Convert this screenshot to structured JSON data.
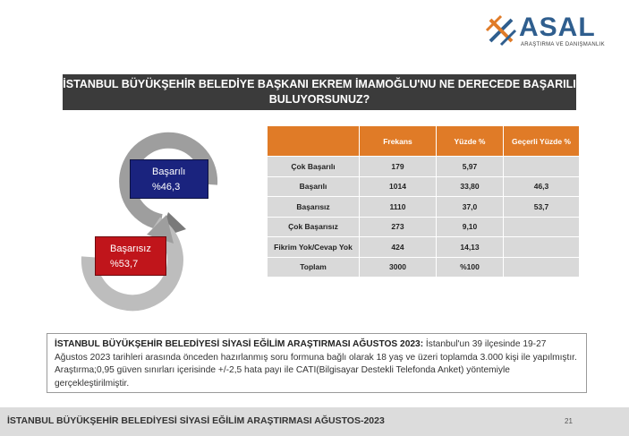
{
  "logo": {
    "name": "ASAL",
    "subtitle": "ARAŞTIRMA VE DANIŞMANLIK"
  },
  "title": {
    "line1": "İSTANBUL BÜYÜKŞEHİR BELEDİYE BAŞKANI EKREM İMAMOĞLU'NU NE DERECEDE BAŞARILI",
    "line2": "BULUYORSUNUZ?"
  },
  "cycle": {
    "success_label": "Başarılı",
    "success_value": "%46,3",
    "fail_label": "Başarısız",
    "fail_value": "%53,7"
  },
  "table": {
    "headers": [
      "",
      "Frekans",
      "Yüzde %",
      "Geçerli Yüzde %"
    ],
    "rows": [
      {
        "label": "Çok Başarılı",
        "frekans": "179",
        "yuzde": "5,97",
        "gecerli": ""
      },
      {
        "label": "Başarılı",
        "frekans": "1014",
        "yuzde": "33,80",
        "gecerli": "46,3"
      },
      {
        "label": "Başarısız",
        "frekans": "1110",
        "yuzde": "37,0",
        "gecerli": "53,7"
      },
      {
        "label": "Çok Başarısız",
        "frekans": "273",
        "yuzde": "9,10",
        "gecerli": ""
      },
      {
        "label": "Fikrim Yok/Cevap Yok",
        "frekans": "424",
        "yuzde": "14,13",
        "gecerli": ""
      },
      {
        "label": "Toplam",
        "frekans": "3000",
        "yuzde": "%100",
        "gecerli": ""
      }
    ]
  },
  "note": {
    "bold": "İSTANBUL BÜYÜKŞEHİR BELEDİYESİ SİYASİ EĞİLİM ARAŞTIRMASI AĞUSTOS 2023:",
    "text": " İstanbul'un 39 ilçesinde 19-27 Ağustos 2023 tarihleri arasında önceden hazırlanmış soru formuna bağlı olarak 18 yaş ve üzeri toplamda 3.000 kişi ile yapılmıştır. Araştırma;0,95 güven sınırları içerisinde +/-2,5 hata payı ile CATI(Bilgisayar Destekli Telefonda Anket) yöntemiyle gerçekleştirilmiştir."
  },
  "footer": {
    "text": "İSTANBUL BÜYÜKŞEHİR BELEDİYESİ SİYASİ EĞİLİM ARAŞTIRMASI AĞUSTOS-2023",
    "page": "21"
  },
  "colors": {
    "header_orange": "#e07b27",
    "success_blue": "#1a237e",
    "fail_red": "#c0151b",
    "title_bar": "#3b3b3b"
  }
}
